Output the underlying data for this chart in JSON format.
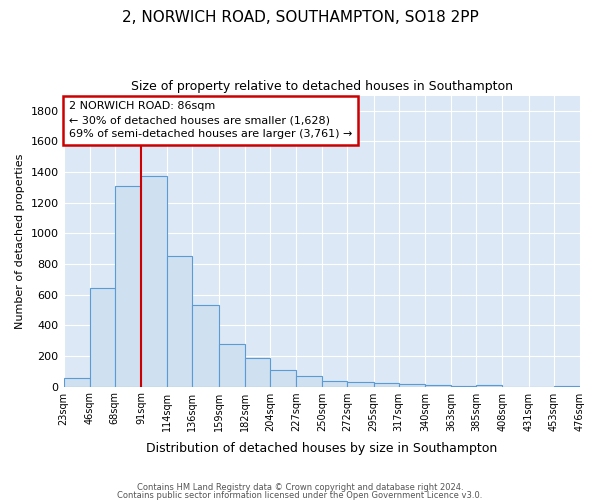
{
  "title": "2, NORWICH ROAD, SOUTHAMPTON, SO18 2PP",
  "subtitle": "Size of property relative to detached houses in Southampton",
  "xlabel": "Distribution of detached houses by size in Southampton",
  "ylabel": "Number of detached properties",
  "bar_color": "#cfe0f0",
  "bar_edge_color": "#5b9bd5",
  "background_color": "#dce8f5",
  "grid_color": "#ffffff",
  "fig_facecolor": "#ffffff",
  "annotation_box_edge": "#cc0000",
  "vline_color": "#cc0000",
  "vline_x": 91,
  "bin_edges": [
    23,
    46,
    68,
    91,
    114,
    136,
    159,
    182,
    204,
    227,
    250,
    272,
    295,
    317,
    340,
    363,
    385,
    408,
    431,
    453,
    476
  ],
  "bin_values": [
    55,
    645,
    1310,
    1375,
    850,
    530,
    280,
    185,
    105,
    68,
    35,
    28,
    20,
    15,
    12,
    5,
    10,
    0,
    0,
    5
  ],
  "tick_labels": [
    "23sqm",
    "46sqm",
    "68sqm",
    "91sqm",
    "114sqm",
    "136sqm",
    "159sqm",
    "182sqm",
    "204sqm",
    "227sqm",
    "250sqm",
    "272sqm",
    "295sqm",
    "317sqm",
    "340sqm",
    "363sqm",
    "385sqm",
    "408sqm",
    "431sqm",
    "453sqm",
    "476sqm"
  ],
  "annotation_title": "2 NORWICH ROAD: 86sqm",
  "annotation_line1": "← 30% of detached houses are smaller (1,628)",
  "annotation_line2": "69% of semi-detached houses are larger (3,761) →",
  "footer1": "Contains HM Land Registry data © Crown copyright and database right 2024.",
  "footer2": "Contains public sector information licensed under the Open Government Licence v3.0.",
  "ylim": [
    0,
    1900
  ],
  "yticks": [
    0,
    200,
    400,
    600,
    800,
    1000,
    1200,
    1400,
    1600,
    1800
  ]
}
